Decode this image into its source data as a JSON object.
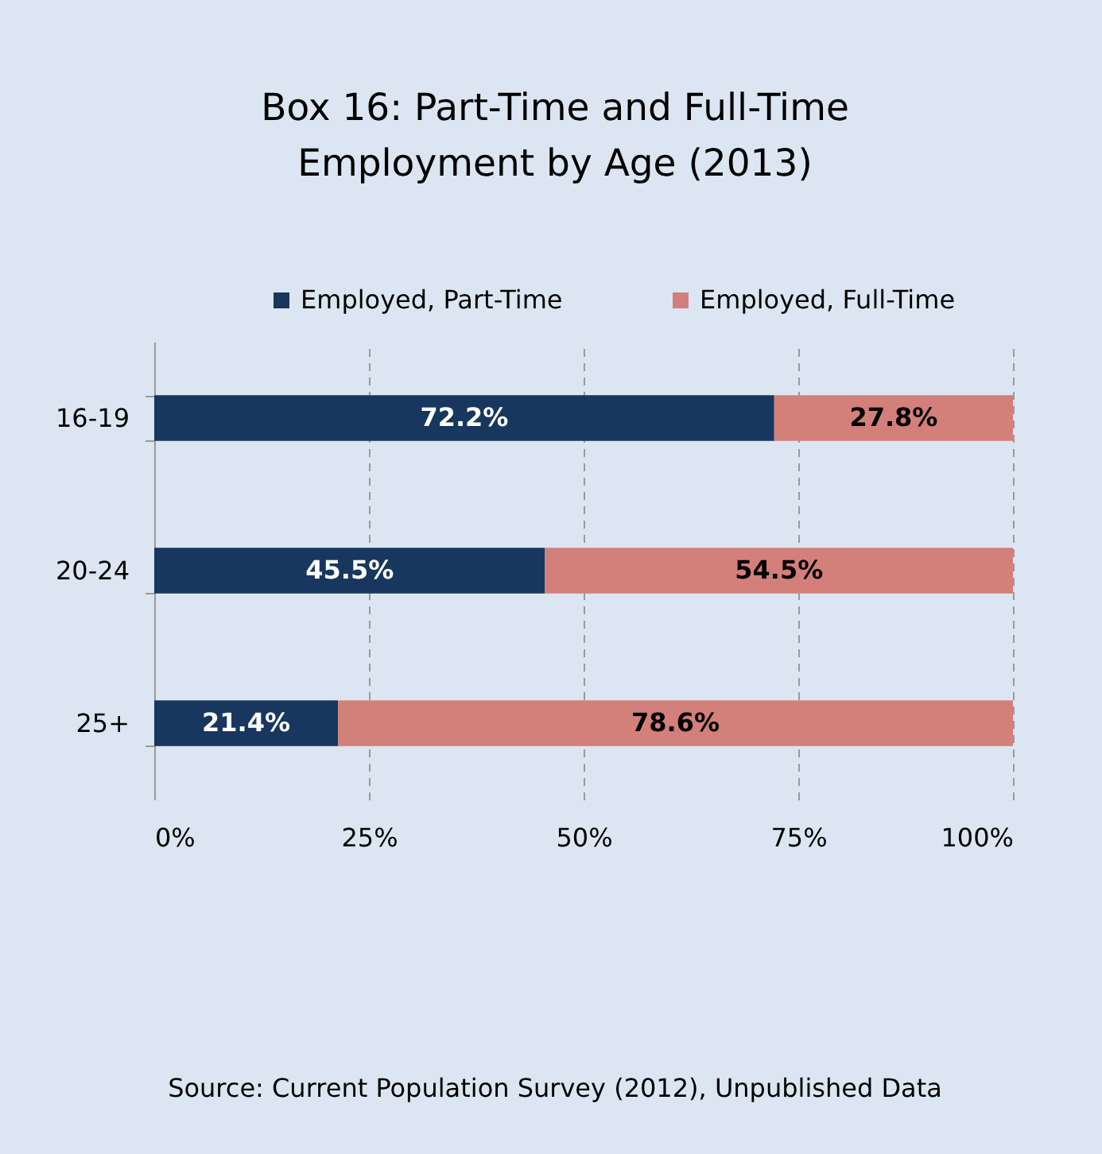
{
  "chart_data": {
    "type": "bar",
    "orientation": "horizontal",
    "stacked": true,
    "title": "Box 16: Part-Time and Full-Time Employment by Age (2013)",
    "categories": [
      "16-19",
      "20-24",
      "25+"
    ],
    "series": [
      {
        "name": "Employed, Part-Time",
        "color": "#17375e",
        "values": [
          72.2,
          45.5,
          21.4
        ],
        "value_labels": [
          "72.2%",
          "45.5%",
          "21.4%"
        ]
      },
      {
        "name": "Employed, Full-Time",
        "color": "#d37f7a",
        "values": [
          27.8,
          54.5,
          78.6
        ],
        "value_labels": [
          "27.8%",
          "54.5%",
          "78.6%"
        ]
      }
    ],
    "xlim": [
      0,
      100
    ],
    "xticks": [
      {
        "value": 0,
        "label": "0%"
      },
      {
        "value": 25,
        "label": "25%"
      },
      {
        "value": 50,
        "label": "50%"
      },
      {
        "value": 75,
        "label": "75%"
      },
      {
        "value": 100,
        "label": "100%"
      }
    ],
    "grid": "x",
    "legend": "top",
    "annotations": [
      "Source: Current Population Survey (2012), Unpublished Data"
    ]
  }
}
